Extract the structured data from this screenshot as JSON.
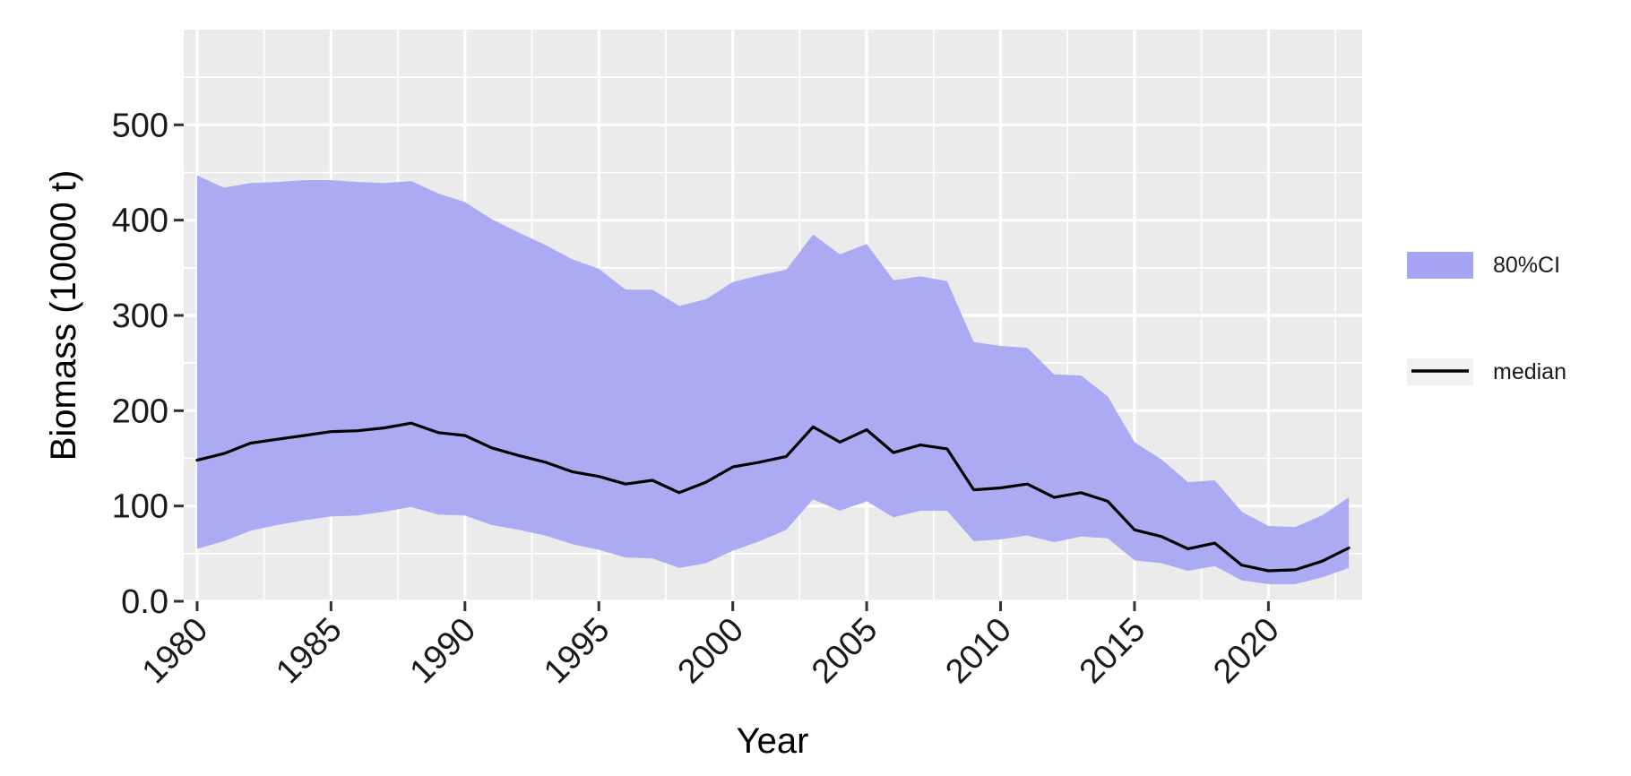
{
  "chart_data": {
    "type": "area",
    "title": "",
    "xlabel": "Year",
    "ylabel": "Biomass (10000 t)",
    "xlim": [
      1979.5,
      2023.5
    ],
    "ylim": [
      0,
      600
    ],
    "x_ticks": [
      1980,
      1985,
      1990,
      1995,
      2000,
      2005,
      2010,
      2015,
      2020
    ],
    "x_tick_labels": [
      "1980",
      "1985",
      "1990",
      "1995",
      "2000",
      "2005",
      "2010",
      "2015",
      "2020"
    ],
    "y_ticks": [
      0,
      100,
      200,
      300,
      400,
      500
    ],
    "y_tick_labels": [
      "0.0",
      "100",
      "200",
      "300",
      "400",
      "500"
    ],
    "grid": true,
    "legend_position": "right",
    "years": [
      1980,
      1981,
      1982,
      1983,
      1984,
      1985,
      1986,
      1987,
      1988,
      1989,
      1990,
      1991,
      1992,
      1993,
      1994,
      1995,
      1996,
      1997,
      1998,
      1999,
      2000,
      2001,
      2002,
      2003,
      2004,
      2005,
      2006,
      2007,
      2008,
      2009,
      2010,
      2011,
      2012,
      2013,
      2014,
      2015,
      2016,
      2017,
      2018,
      2019,
      2020,
      2021,
      2022,
      2023
    ],
    "series": [
      {
        "name": "median",
        "kind": "line",
        "color": "#000000",
        "values": [
          148,
          155,
          166,
          170,
          174,
          178,
          179,
          182,
          187,
          177,
          174,
          161,
          153,
          146,
          136,
          131,
          123,
          127,
          114,
          125,
          141,
          146,
          152,
          183,
          167,
          180,
          156,
          164,
          160,
          117,
          119,
          123,
          109,
          114,
          105,
          75,
          68,
          55,
          61,
          38,
          32,
          33,
          42,
          56
        ]
      },
      {
        "name": "80%CI",
        "kind": "band",
        "color": "#a5a5f3",
        "lower": [
          55,
          63,
          74,
          80,
          85,
          89,
          90,
          94,
          99,
          91,
          90,
          80,
          75,
          69,
          60,
          54,
          46,
          45,
          35,
          40,
          53,
          63,
          75,
          107,
          95,
          105,
          88,
          95,
          95,
          63,
          65,
          69,
          62,
          68,
          66,
          43,
          40,
          32,
          37,
          22,
          18,
          18,
          25,
          35
        ],
        "upper": [
          447,
          434,
          439,
          440,
          442,
          442,
          440,
          439,
          441,
          428,
          419,
          401,
          387,
          374,
          359,
          349,
          327,
          327,
          310,
          317,
          335,
          342,
          348,
          385,
          364,
          375,
          337,
          341,
          336,
          272,
          268,
          266,
          238,
          237,
          215,
          167,
          149,
          125,
          127,
          94,
          79,
          78,
          90,
          109
        ]
      }
    ]
  }
}
